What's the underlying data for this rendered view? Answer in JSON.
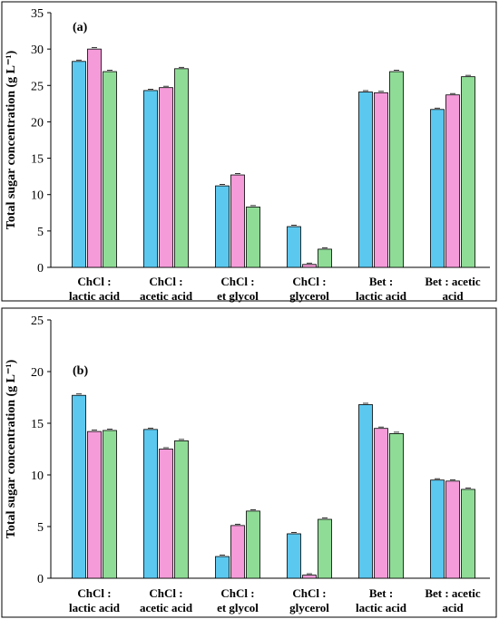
{
  "chart_data": [
    {
      "type": "bar",
      "panel_label": "(a)",
      "ylabel": "Total sugar concentration  (g L⁻¹)",
      "ylim": [
        0,
        35
      ],
      "yticks": [
        0,
        5,
        10,
        15,
        20,
        25,
        30,
        35
      ],
      "categories": [
        [
          "ChCl :",
          "lactic acid"
        ],
        [
          "ChCl :",
          "acetic acid"
        ],
        [
          "ChCl :",
          "et glycol"
        ],
        [
          "ChCl :",
          "glycerol"
        ],
        [
          "Bet :",
          "lactic acid"
        ],
        [
          "Bet : acetic",
          "acid"
        ]
      ],
      "series": [
        {
          "color": "#5bc8f0",
          "values": [
            28.3,
            24.3,
            11.2,
            5.6,
            24.1,
            21.7
          ]
        },
        {
          "color": "#f59bd9",
          "values": [
            30.0,
            24.7,
            12.7,
            0.4,
            24.0,
            23.7
          ]
        },
        {
          "color": "#8fdc96",
          "values": [
            26.9,
            27.3,
            8.3,
            2.5,
            26.9,
            26.2
          ]
        }
      ]
    },
    {
      "type": "bar",
      "panel_label": "(b)",
      "ylabel": "Total sugar concentration  (g L⁻¹)",
      "ylim": [
        0,
        25
      ],
      "yticks": [
        0,
        5,
        10,
        15,
        20,
        25
      ],
      "categories": [
        [
          "ChCl :",
          "lactic acid"
        ],
        [
          "ChCl :",
          "acetic acid"
        ],
        [
          "ChCl :",
          "et glycol"
        ],
        [
          "ChCl :",
          "glycerol"
        ],
        [
          "Bet :",
          "lactic acid"
        ],
        [
          "Bet : acetic",
          "acid"
        ]
      ],
      "series": [
        {
          "color": "#5bc8f0",
          "values": [
            17.7,
            14.4,
            2.1,
            4.3,
            16.8,
            9.5
          ]
        },
        {
          "color": "#f59bd9",
          "values": [
            14.2,
            12.5,
            5.1,
            0.3,
            14.5,
            9.4
          ]
        },
        {
          "color": "#8fdc96",
          "values": [
            14.3,
            13.3,
            6.5,
            5.7,
            14.0,
            8.6
          ]
        }
      ]
    }
  ]
}
